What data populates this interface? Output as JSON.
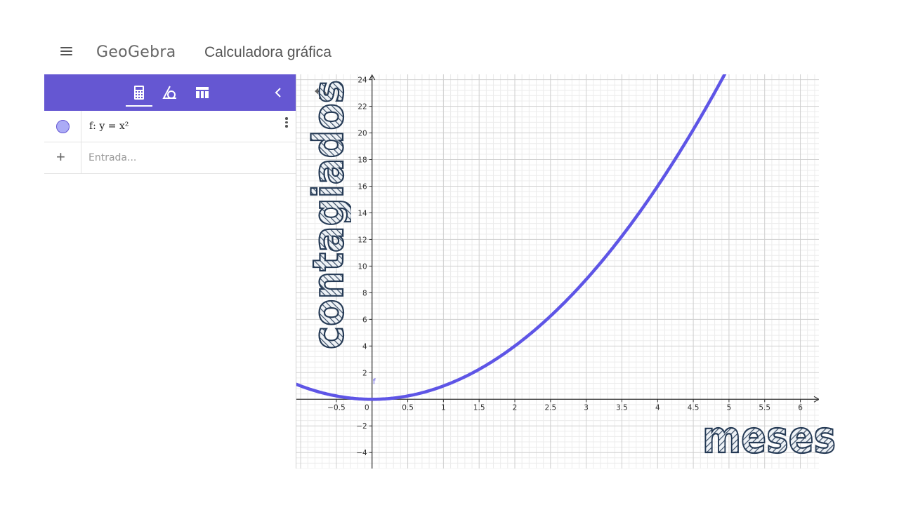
{
  "header": {
    "menu_icon": "hamburger-menu-icon",
    "logo": "GeoGebra",
    "title": "Calculadora gráfica"
  },
  "toolbar": {
    "icons": [
      "calculator-icon",
      "geometry-tools-icon",
      "table-icon"
    ],
    "active": "calculator-icon",
    "collapse_icon": "chevron-left-icon",
    "accent_color": "#6557d2"
  },
  "algebra": {
    "items": [
      {
        "label": "f: y = x²",
        "color": "#ababf6",
        "visible": true
      }
    ],
    "input_placeholder": "Entrada..."
  },
  "graphics": {
    "undo_icon": "undo-icon",
    "function_label": "f",
    "function_color": "#5e55e6",
    "overlay_y": "contagiados",
    "overlay_x": "meses"
  },
  "chart_data": {
    "type": "line",
    "title": "",
    "xlabel": "meses",
    "ylabel": "contagiados",
    "xlim": [
      -1.06,
      6.27
    ],
    "ylim": [
      -5.2,
      24.4
    ],
    "grid": true,
    "x_ticks": [
      -0.5,
      0,
      0.5,
      1,
      1.5,
      2,
      2.5,
      3,
      3.5,
      4,
      4.5,
      5,
      5.5,
      6
    ],
    "x_tick_labels": [
      "−0.5",
      "0",
      "0.5",
      "1",
      "1.5",
      "2",
      "2.5",
      "3",
      "3.5",
      "4",
      "4.5",
      "5",
      "5.5",
      "6"
    ],
    "y_ticks": [
      -4,
      -2,
      2,
      4,
      6,
      8,
      10,
      12,
      14,
      16,
      18,
      20,
      22,
      24
    ],
    "y_tick_labels": [
      "−4",
      "−2",
      "2",
      "4",
      "6",
      "8",
      "10",
      "12",
      "14",
      "16",
      "18",
      "20",
      "22",
      "24"
    ],
    "series": [
      {
        "name": "f",
        "expression": "y = x^2",
        "x": [
          -1,
          0,
          1,
          2,
          3,
          4,
          4.9
        ],
        "y": [
          1,
          0,
          1,
          4,
          9,
          16,
          24.01
        ]
      }
    ]
  }
}
